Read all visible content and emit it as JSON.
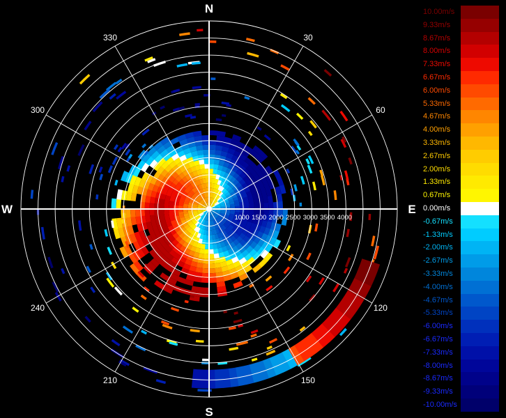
{
  "chart_data": {
    "type": "polar-radar-velocity",
    "compass_labels": {
      "north": "N",
      "east": "E",
      "south": "S",
      "west": "W"
    },
    "azimuth_labels": [
      {
        "deg": 30,
        "text": "30"
      },
      {
        "deg": 60,
        "text": "60"
      },
      {
        "deg": 120,
        "text": "120"
      },
      {
        "deg": 150,
        "text": "150"
      },
      {
        "deg": 210,
        "text": "210"
      },
      {
        "deg": 240,
        "text": "240"
      },
      {
        "deg": 300,
        "text": "300"
      },
      {
        "deg": 330,
        "text": "330"
      }
    ],
    "range_labels": [
      "1000",
      "1500",
      "2000",
      "2500",
      "3000",
      "3500",
      "4000"
    ],
    "range_rings": [
      500,
      1000,
      1500,
      2000,
      2500,
      3000,
      3500,
      4000,
      4500,
      5000,
      5500
    ],
    "range_max": 5500,
    "velocity_scale": [
      {
        "label": "10.00m/s",
        "value": 10.0,
        "color": "#7a0000"
      },
      {
        "label": "9.33m/s",
        "value": 9.33,
        "color": "#960000"
      },
      {
        "label": "8.67m/s",
        "value": 8.67,
        "color": "#b40000"
      },
      {
        "label": "8.00m/s",
        "value": 8.0,
        "color": "#d20000"
      },
      {
        "label": "7.33m/s",
        "value": 7.33,
        "color": "#ee0a00"
      },
      {
        "label": "6.67m/s",
        "value": 6.67,
        "color": "#ff2a00"
      },
      {
        "label": "6.00m/s",
        "value": 6.0,
        "color": "#ff4a00"
      },
      {
        "label": "5.33m/s",
        "value": 5.33,
        "color": "#ff6a00"
      },
      {
        "label": "4.67m/s",
        "value": 4.67,
        "color": "#ff8600"
      },
      {
        "label": "4.00m/s",
        "value": 4.0,
        "color": "#ffa000"
      },
      {
        "label": "3.33m/s",
        "value": 3.33,
        "color": "#ffb800"
      },
      {
        "label": "2.67m/s",
        "value": 2.67,
        "color": "#ffcc00"
      },
      {
        "label": "2.00m/s",
        "value": 2.0,
        "color": "#ffdc00"
      },
      {
        "label": "1.33m/s",
        "value": 1.33,
        "color": "#ffea00"
      },
      {
        "label": "0.67m/s",
        "value": 0.67,
        "color": "#fff600"
      },
      {
        "label": "0.00m/s",
        "value": 0.0,
        "color": "#ffffff"
      },
      {
        "label": "-0.67m/s",
        "value": -0.67,
        "color": "#14e0ff"
      },
      {
        "label": "-1.33m/s",
        "value": -1.33,
        "color": "#00ccff"
      },
      {
        "label": "-2.00m/s",
        "value": -2.0,
        "color": "#00b4f4"
      },
      {
        "label": "-2.67m/s",
        "value": -2.67,
        "color": "#009ce8"
      },
      {
        "label": "-3.33m/s",
        "value": -3.33,
        "color": "#0086dc"
      },
      {
        "label": "-4.00m/s",
        "value": -4.0,
        "color": "#0070d4"
      },
      {
        "label": "-4.67m/s",
        "value": -4.67,
        "color": "#0058cc"
      },
      {
        "label": "-5.33m/s",
        "value": -5.33,
        "color": "#0044c4"
      },
      {
        "label": "-6.00m/s",
        "value": -6.0,
        "color": "#0030bc"
      },
      {
        "label": "-6.67m/s",
        "value": -6.67,
        "color": "#001eb4"
      },
      {
        "label": "-7.33m/s",
        "value": -7.33,
        "color": "#0010a8"
      },
      {
        "label": "-8.00m/s",
        "value": -8.0,
        "color": "#00069a"
      },
      {
        "label": "-8.67m/s",
        "value": -8.67,
        "color": "#00028a"
      },
      {
        "label": "-9.33m/s",
        "value": -9.33,
        "color": "#00007a"
      },
      {
        "label": "-10.00m/s",
        "value": -10.0,
        "color": "#00006a"
      }
    ],
    "grid": true,
    "legend_position": "right"
  }
}
